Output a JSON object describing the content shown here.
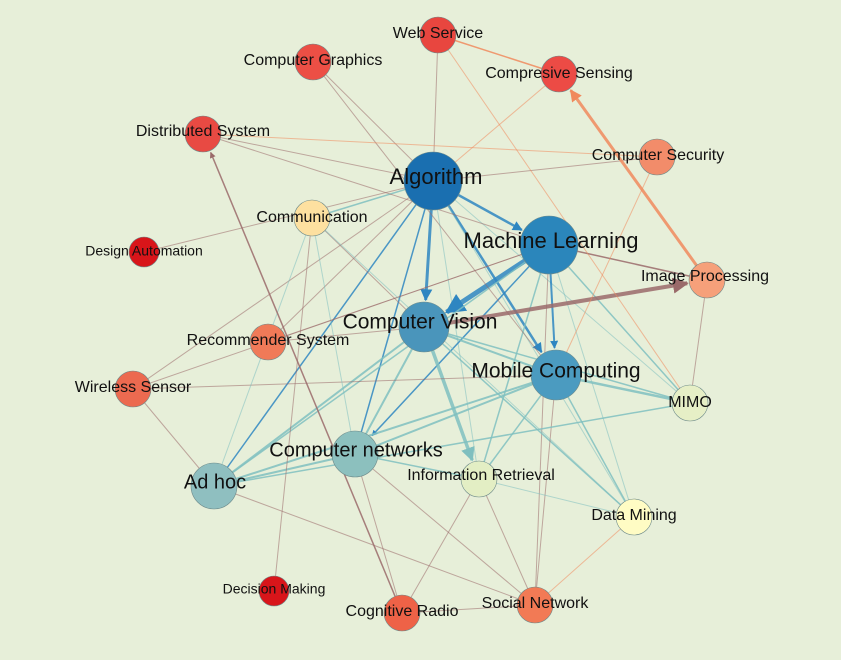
{
  "colors": {
    "background": "#e7efd9",
    "edge_default": "#9a6a6a",
    "edge_blue": "#2e86c1",
    "edge_teal": "#7fbfbf",
    "edge_orange": "#f08a5d"
  },
  "nodes": [
    {
      "id": "algorithm",
      "label": "Algorithm",
      "color": "#1a6fb0",
      "size": "xl"
    },
    {
      "id": "machine-learning",
      "label": "Machine Learning",
      "color": "#2b86bb",
      "size": "xl"
    },
    {
      "id": "computer-vision",
      "label": "Computer Vision",
      "color": "#4a95bb",
      "size": "lg"
    },
    {
      "id": "mobile-computing",
      "label": "Mobile Computing",
      "color": "#4b9bc0",
      "size": "lg"
    },
    {
      "id": "computer-networks",
      "label": "Computer networks",
      "color": "#8cc0be",
      "size": "md"
    },
    {
      "id": "ad-hoc",
      "label": "Ad hoc",
      "color": "#8fbfc0",
      "size": "md"
    },
    {
      "id": "information-retrieval",
      "label": "Information Retrieval",
      "color": "#e3eec4",
      "size": "sm"
    },
    {
      "id": "mimo",
      "label": "MIMO",
      "color": "#e6efc6",
      "size": "sm"
    },
    {
      "id": "data-mining",
      "label": "Data Mining",
      "color": "#fffcc4",
      "size": "sm"
    },
    {
      "id": "image-processing",
      "label": "Image Processing",
      "color": "#f6a07a",
      "size": "sm"
    },
    {
      "id": "communication",
      "label": "Communication",
      "color": "#fde0a0",
      "size": "sm"
    },
    {
      "id": "computer-security",
      "label": "Computer Security",
      "color": "#f28c6a",
      "size": "sm"
    },
    {
      "id": "recommender-system",
      "label": "Recommender System",
      "color": "#f07a58",
      "size": "sm"
    },
    {
      "id": "wireless-sensor",
      "label": "Wireless Sensor",
      "color": "#ec6a50",
      "size": "sm"
    },
    {
      "id": "web-service",
      "label": "Web Service",
      "color": "#e8463f",
      "size": "sm"
    },
    {
      "id": "computer-graphics",
      "label": "Computer Graphics",
      "color": "#ec4f45",
      "size": "sm"
    },
    {
      "id": "compresive-sensing",
      "label": "Compresive Sensing",
      "color": "#ec4b45",
      "size": "sm"
    },
    {
      "id": "distributed-system",
      "label": "Distributed System",
      "color": "#e84a43",
      "size": "sm"
    },
    {
      "id": "design-automation",
      "label": "Design Automation",
      "color": "#d8151a",
      "size": "xs"
    },
    {
      "id": "decision-making",
      "label": "Decision Making",
      "color": "#d8151a",
      "size": "xs"
    },
    {
      "id": "cognitive-radio",
      "label": "Cognitive Radio",
      "color": "#ee6247",
      "size": "sm"
    },
    {
      "id": "social-network",
      "label": "Social Network",
      "color": "#f27a55",
      "size": "sm"
    }
  ],
  "edges": [
    {
      "source": "algorithm",
      "target": "machine-learning",
      "color": "edge_blue",
      "weight": 2.5,
      "arrow": true
    },
    {
      "source": "algorithm",
      "target": "computer-vision",
      "color": "edge_blue",
      "weight": 3,
      "arrow": true
    },
    {
      "source": "algorithm",
      "target": "mobile-computing",
      "color": "edge_blue",
      "weight": 2.5,
      "arrow": true
    },
    {
      "source": "algorithm",
      "target": "computer-networks",
      "color": "edge_blue",
      "weight": 1.5,
      "arrow": false
    },
    {
      "source": "algorithm",
      "target": "ad-hoc",
      "color": "edge_blue",
      "weight": 1.5,
      "arrow": false
    },
    {
      "source": "algorithm",
      "target": "web-service",
      "color": "edge_default",
      "weight": 1,
      "arrow": false
    },
    {
      "source": "algorithm",
      "target": "computer-graphics",
      "color": "edge_default",
      "weight": 1,
      "arrow": false
    },
    {
      "source": "algorithm",
      "target": "distributed-system",
      "color": "edge_default",
      "weight": 1,
      "arrow": false
    },
    {
      "source": "algorithm",
      "target": "design-automation",
      "color": "edge_default",
      "weight": 1,
      "arrow": false
    },
    {
      "source": "algorithm",
      "target": "recommender-system",
      "color": "edge_default",
      "weight": 1,
      "arrow": false
    },
    {
      "source": "algorithm",
      "target": "wireless-sensor",
      "color": "edge_default",
      "weight": 1,
      "arrow": false
    },
    {
      "source": "algorithm",
      "target": "computer-security",
      "color": "edge_default",
      "weight": 1,
      "arrow": false
    },
    {
      "source": "algorithm",
      "target": "communication",
      "color": "edge_teal",
      "weight": 1.5,
      "arrow": false
    },
    {
      "source": "algorithm",
      "target": "information-retrieval",
      "color": "edge_teal",
      "weight": 1,
      "arrow": false
    },
    {
      "source": "algorithm",
      "target": "mimo",
      "color": "edge_teal",
      "weight": 1,
      "arrow": false
    },
    {
      "source": "algorithm",
      "target": "data-mining",
      "color": "edge_teal",
      "weight": 1,
      "arrow": false
    },
    {
      "source": "machine-learning",
      "target": "computer-vision",
      "color": "edge_blue",
      "weight": 5,
      "arrow": true
    },
    {
      "source": "machine-learning",
      "target": "mobile-computing",
      "color": "edge_blue",
      "weight": 2,
      "arrow": true
    },
    {
      "source": "machine-learning",
      "target": "image-processing",
      "color": "edge_default",
      "weight": 1.5,
      "arrow": false
    },
    {
      "source": "machine-learning",
      "target": "computer-networks",
      "color": "edge_blue",
      "weight": 1.5,
      "arrow": true
    },
    {
      "source": "machine-learning",
      "target": "ad-hoc",
      "color": "edge_teal",
      "weight": 1.5,
      "arrow": false
    },
    {
      "source": "machine-learning",
      "target": "information-retrieval",
      "color": "edge_teal",
      "weight": 1.5,
      "arrow": false
    },
    {
      "source": "machine-learning",
      "target": "mimo",
      "color": "edge_teal",
      "weight": 1.5,
      "arrow": false
    },
    {
      "source": "machine-learning",
      "target": "data-mining",
      "color": "edge_teal",
      "weight": 1,
      "arrow": false
    },
    {
      "source": "machine-learning",
      "target": "social-network",
      "color": "edge_default",
      "weight": 1,
      "arrow": false
    },
    {
      "source": "computer-vision",
      "target": "image-processing",
      "color": "edge_default",
      "weight": 4,
      "arrow": true
    },
    {
      "source": "computer-vision",
      "target": "mobile-computing",
      "color": "edge_teal",
      "weight": 2,
      "arrow": false
    },
    {
      "source": "computer-vision",
      "target": "information-retrieval",
      "color": "edge_teal",
      "weight": 3.5,
      "arrow": true
    },
    {
      "source": "computer-vision",
      "target": "computer-networks",
      "color": "edge_teal",
      "weight": 2,
      "arrow": false
    },
    {
      "source": "computer-vision",
      "target": "ad-hoc",
      "color": "edge_teal",
      "weight": 2,
      "arrow": false
    },
    {
      "source": "computer-vision",
      "target": "mimo",
      "color": "edge_teal",
      "weight": 1.5,
      "arrow": false
    },
    {
      "source": "computer-vision",
      "target": "data-mining",
      "color": "edge_teal",
      "weight": 1.5,
      "arrow": false
    },
    {
      "source": "computer-vision",
      "target": "recommender-system",
      "color": "edge_default",
      "weight": 1,
      "arrow": false
    },
    {
      "source": "computer-vision",
      "target": "communication",
      "color": "edge_default",
      "weight": 1,
      "arrow": false
    },
    {
      "source": "mobile-computing",
      "target": "computer-networks",
      "color": "edge_teal",
      "weight": 2,
      "arrow": false
    },
    {
      "source": "mobile-computing",
      "target": "ad-hoc",
      "color": "edge_teal",
      "weight": 2,
      "arrow": false
    },
    {
      "source": "mobile-computing",
      "target": "mimo",
      "color": "edge_teal",
      "weight": 2.5,
      "arrow": false
    },
    {
      "source": "mobile-computing",
      "target": "information-retrieval",
      "color": "edge_teal",
      "weight": 1.5,
      "arrow": false
    },
    {
      "source": "mobile-computing",
      "target": "wireless-sensor",
      "color": "edge_default",
      "weight": 1,
      "arrow": false
    },
    {
      "source": "mobile-computing",
      "target": "social-network",
      "color": "edge_default",
      "weight": 1,
      "arrow": false
    },
    {
      "source": "mobile-computing",
      "target": "data-mining",
      "color": "edge_teal",
      "weight": 1.5,
      "arrow": false
    },
    {
      "source": "computer-networks",
      "target": "ad-hoc",
      "color": "edge_teal",
      "weight": 2,
      "arrow": false
    },
    {
      "source": "computer-networks",
      "target": "information-retrieval",
      "color": "edge_teal",
      "weight": 1.5,
      "arrow": false
    },
    {
      "source": "computer-networks",
      "target": "social-network",
      "color": "edge_default",
      "weight": 1,
      "arrow": false
    },
    {
      "source": "computer-networks",
      "target": "cognitive-radio",
      "color": "edge_default",
      "weight": 1,
      "arrow": false
    },
    {
      "source": "computer-networks",
      "target": "communication",
      "color": "edge_teal",
      "weight": 1,
      "arrow": false
    },
    {
      "source": "ad-hoc",
      "target": "mimo",
      "color": "edge_teal",
      "weight": 1.5,
      "arrow": false
    },
    {
      "source": "ad-hoc",
      "target": "wireless-sensor",
      "color": "edge_default",
      "weight": 1,
      "arrow": false
    },
    {
      "source": "ad-hoc",
      "target": "social-network",
      "color": "edge_default",
      "weight": 1,
      "arrow": false
    },
    {
      "source": "ad-hoc",
      "target": "communication",
      "color": "edge_teal",
      "weight": 1,
      "arrow": false
    },
    {
      "source": "information-retrieval",
      "target": "data-mining",
      "color": "edge_teal",
      "weight": 1,
      "arrow": false
    },
    {
      "source": "information-retrieval",
      "target": "cognitive-radio",
      "color": "edge_default",
      "weight": 1,
      "arrow": false
    },
    {
      "source": "information-retrieval",
      "target": "social-network",
      "color": "edge_default",
      "weight": 1,
      "arrow": false
    },
    {
      "source": "image-processing",
      "target": "compresive-sensing",
      "color": "edge_orange",
      "weight": 3,
      "arrow": true
    },
    {
      "source": "image-processing",
      "target": "mimo",
      "color": "edge_default",
      "weight": 1,
      "arrow": false
    },
    {
      "source": "web-service",
      "target": "compresive-sensing",
      "color": "edge_orange",
      "weight": 1.5,
      "arrow": false
    },
    {
      "source": "computer-graphics",
      "target": "mobile-computing",
      "color": "edge_default",
      "weight": 1,
      "arrow": false
    },
    {
      "source": "distributed-system",
      "target": "computer-security",
      "color": "edge_orange",
      "weight": 1,
      "arrow": false
    },
    {
      "source": "distributed-system",
      "target": "machine-learning",
      "color": "edge_default",
      "weight": 1,
      "arrow": false
    },
    {
      "source": "cognitive-radio",
      "target": "distributed-system",
      "color": "edge_default",
      "weight": 1.5,
      "arrow": true
    },
    {
      "source": "decision-making",
      "target": "communication",
      "color": "edge_default",
      "weight": 1,
      "arrow": false
    },
    {
      "source": "recommender-system",
      "target": "machine-learning",
      "color": "edge_default",
      "weight": 1,
      "arrow": false
    },
    {
      "source": "wireless-sensor",
      "target": "machine-learning",
      "color": "edge_default",
      "weight": 1,
      "arrow": false
    },
    {
      "source": "communication",
      "target": "data-mining",
      "color": "edge_teal",
      "weight": 1,
      "arrow": false
    },
    {
      "source": "compresive-sensing",
      "target": "algorithm",
      "color": "edge_orange",
      "weight": 1,
      "arrow": false
    },
    {
      "source": "computer-security",
      "target": "mobile-computing",
      "color": "edge_orange",
      "weight": 1,
      "arrow": false
    },
    {
      "source": "web-service",
      "target": "mimo",
      "color": "edge_orange",
      "weight": 1,
      "arrow": false
    },
    {
      "source": "social-network",
      "target": "cognitive-radio",
      "color": "edge_default",
      "weight": 1,
      "arrow": false
    },
    {
      "source": "data-mining",
      "target": "social-network",
      "color": "edge_orange",
      "weight": 1,
      "arrow": false
    }
  ]
}
